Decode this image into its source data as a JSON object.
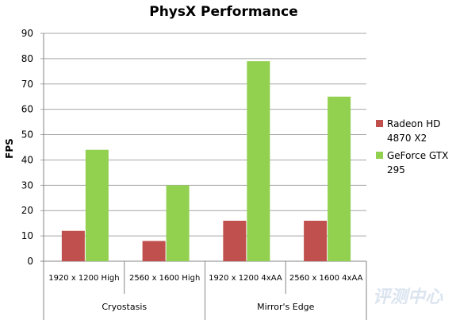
{
  "chart_data": {
    "type": "bar",
    "title": "PhysX Performance",
    "ylabel": "FPS",
    "xlabel": "",
    "ylim": [
      0,
      90
    ],
    "yticks": [
      0,
      10,
      20,
      30,
      40,
      50,
      60,
      70,
      80,
      90
    ],
    "grid": true,
    "legend_position": "right",
    "categories": [
      "1920 x 1200 High",
      "2560 x 1600 High",
      "1920 x 1200 4xAA",
      "2560 x 1600 4xAA"
    ],
    "groups": [
      {
        "label": "Cryostasis",
        "categories": [
          "1920 x 1200 High",
          "2560 x 1600 High"
        ]
      },
      {
        "label": "Mirror's Edge",
        "categories": [
          "1920 x 1200 4xAA",
          "2560 x 1600 4xAA"
        ]
      }
    ],
    "series": [
      {
        "name": "Radeon HD 4870 X2",
        "legend_lines": [
          "Radeon HD",
          "4870 X2"
        ],
        "color": "#c0504d",
        "values": [
          12,
          8,
          16,
          16
        ]
      },
      {
        "name": "GeForce GTX 295",
        "legend_lines": [
          "GeForce GTX",
          "295"
        ],
        "color": "#92d050",
        "values": [
          44,
          30,
          79,
          65
        ]
      }
    ]
  },
  "watermark": {
    "text": "评测中心"
  }
}
